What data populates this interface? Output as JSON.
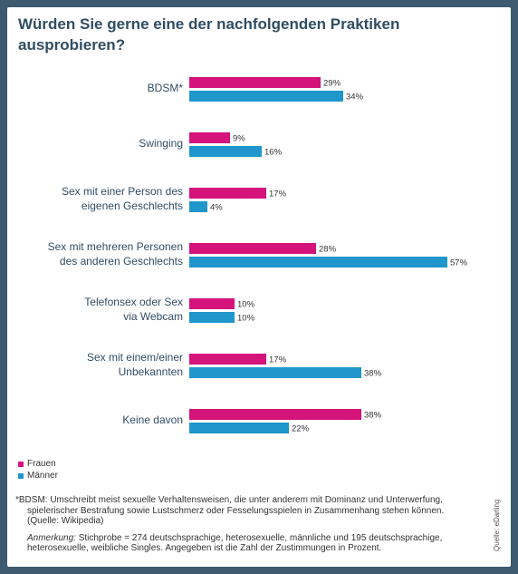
{
  "title": {
    "line1": "Würden Sie gerne eine der nachfolgenden Praktiken",
    "line2": "ausprobieren?"
  },
  "colors": {
    "frauen": "#d4137b",
    "maenner": "#1f96cc",
    "value_text": "#333333",
    "category_text": "#2f4d63"
  },
  "legend": {
    "frauen": "Frauen",
    "maenner": "Männer"
  },
  "chart_data": {
    "type": "bar",
    "orientation": "horizontal",
    "categories": [
      [
        "BDSM*"
      ],
      [
        "Swinging"
      ],
      [
        "Sex mit einer Person des",
        "eigenen Geschlechts"
      ],
      [
        "Sex mit mehreren Personen",
        "des anderen Geschlechts"
      ],
      [
        "Telefonsex oder Sex",
        "via Webcam"
      ],
      [
        "Sex mit einem/einer",
        "Unbekannten"
      ],
      [
        "Keine davon"
      ]
    ],
    "series": [
      {
        "name": "Frauen",
        "values": [
          29,
          9,
          17,
          28,
          10,
          17,
          38
        ]
      },
      {
        "name": "Männer",
        "values": [
          34,
          16,
          4,
          57,
          10,
          38,
          22
        ]
      }
    ],
    "value_suffix": "%",
    "xlim": [
      0,
      100
    ],
    "legend_position": "bottom-left",
    "grid": false
  },
  "footnote": {
    "line1": "*BDSM: Umschreibt meist sexuelle Verhaltensweisen, die unter anderem mit Dominanz und Unterwerfung,",
    "line2": "spielerischer Bestrafung sowie Lustschmerz oder Fesselungsspielen in Zusammenhang stehen können.",
    "line3": "(Quelle: Wikipedia)"
  },
  "note": {
    "label": "Anmerkung:",
    "line1": " Stichprobe = 274 deutschsprachige, heterosexuelle, männliche und 195 deutschsprachige,",
    "line2": "heterosexuelle, weibliche Singles. Angegeben ist die Zahl der Zustimmungen in Prozent."
  },
  "source": "Quelle: eDarling"
}
